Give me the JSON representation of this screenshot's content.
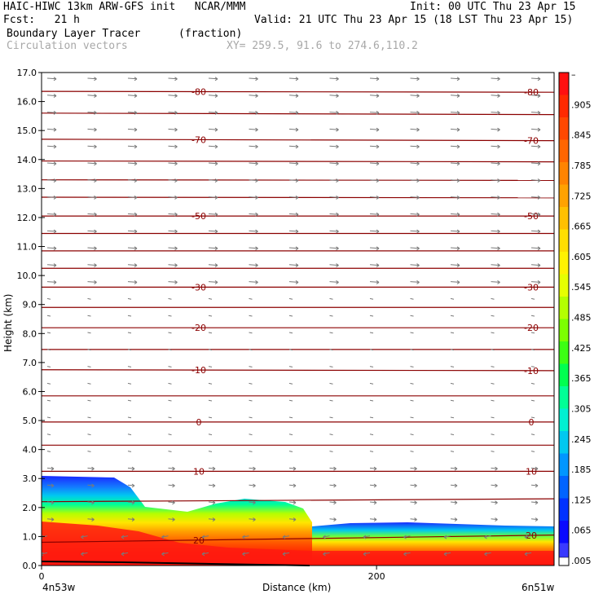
{
  "header": {
    "line1_left": "HAIC-HIWC 13km ARW-GFS init   NCAR/MMM",
    "line1_right": "Init: 00 UTC Thu 23 Apr 15",
    "line2_left": "Fcst:   21 h",
    "line2_right": "Valid: 21 UTC Thu 23 Apr 15 (18 LST Thu 23 Apr 15)",
    "line3_field": "Boundary Layer Tracer",
    "line3_units": "(fraction)",
    "line4_field": "Circulation vectors",
    "line4_xy": "XY= 259.5, 91.6 to 274.6,110.2"
  },
  "chart_data": {
    "type": "cross-section",
    "ylabel": "Height (km)",
    "xlabel": "Distance (km)",
    "ylim": [
      0,
      17
    ],
    "yticks": [
      "0.0",
      "1.0",
      "2.0",
      "3.0",
      "4.0",
      "5.0",
      "6.0",
      "7.0",
      "8.0",
      "9.0",
      "10.0",
      "11.0",
      "12.0",
      "13.0",
      "14.0",
      "15.0",
      "16.0",
      "17.0"
    ],
    "xlim": [
      0,
      306
    ],
    "xticks": [
      {
        "value": 0,
        "label": "0"
      },
      {
        "value": 200,
        "label": "200"
      }
    ],
    "x_endpoint_left": "4n53w",
    "x_endpoint_right": "6n51w",
    "colorbar": {
      "labels": [
        "–",
        ".905",
        ".845",
        ".785",
        ".725",
        ".665",
        ".605",
        ".545",
        ".485",
        ".425",
        ".365",
        ".305",
        ".245",
        ".185",
        ".125",
        ".065",
        ".005"
      ],
      "colors": [
        "#ff1010",
        "#ff2a00",
        "#ff4800",
        "#ff6600",
        "#ff8400",
        "#ffa200",
        "#ffc000",
        "#ffde00",
        "#fff200",
        "#e6ff00",
        "#b4ff00",
        "#7cff00",
        "#3cff14",
        "#00ff50",
        "#00ff96",
        "#00f0d2",
        "#00c8f0",
        "#0096ff",
        "#0064ff",
        "#0032ff",
        "#0a0aff",
        "#3a3aff"
      ]
    },
    "temperature_contours": [
      {
        "label": "-80",
        "z": [
          16.35,
          16.32
        ]
      },
      {
        "label": "",
        "z": [
          15.6,
          15.55
        ]
      },
      {
        "label": "-70",
        "z": [
          14.7,
          14.65
        ]
      },
      {
        "label": "",
        "z": [
          13.95,
          13.92
        ]
      },
      {
        "label": "",
        "z": [
          13.3,
          13.28
        ]
      },
      {
        "label": "",
        "z": [
          12.7,
          12.68
        ]
      },
      {
        "label": "-50",
        "z": [
          12.05,
          12.05
        ]
      },
      {
        "label": "",
        "z": [
          11.45,
          11.45
        ]
      },
      {
        "label": "",
        "z": [
          10.85,
          10.85
        ]
      },
      {
        "label": "",
        "z": [
          10.25,
          10.25
        ]
      },
      {
        "label": "-30",
        "z": [
          9.6,
          9.6
        ]
      },
      {
        "label": "",
        "z": [
          8.9,
          8.9
        ]
      },
      {
        "label": "-20",
        "z": [
          8.2,
          8.2
        ]
      },
      {
        "label": "",
        "z": [
          7.45,
          7.45
        ]
      },
      {
        "label": "-10",
        "z": [
          6.75,
          6.72
        ]
      },
      {
        "label": "",
        "z": [
          5.85,
          5.85
        ]
      },
      {
        "label": "0",
        "z": [
          4.95,
          4.95
        ]
      },
      {
        "label": "",
        "z": [
          4.15,
          4.15
        ]
      },
      {
        "label": "10",
        "z": [
          3.25,
          3.25
        ]
      },
      {
        "label": "",
        "z": [
          2.2,
          2.3
        ]
      },
      {
        "label": "20",
        "z": [
          0.8,
          1.05
        ]
      }
    ]
  }
}
